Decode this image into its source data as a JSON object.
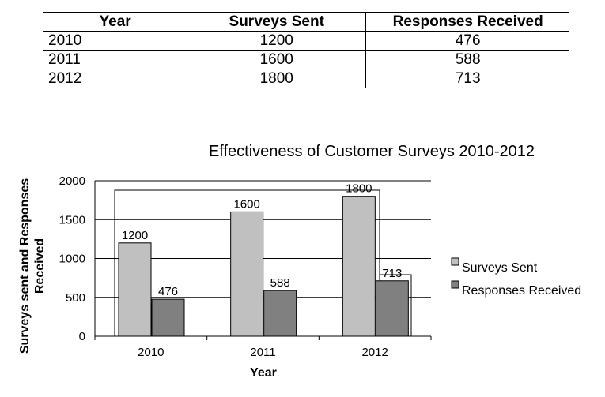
{
  "table": {
    "headers": [
      "Year",
      "Surveys Sent",
      "Responses Received"
    ],
    "rows": [
      [
        "2010",
        "1200",
        "476"
      ],
      [
        "2011",
        "1600",
        "588"
      ],
      [
        "2012",
        "1800",
        "713"
      ]
    ]
  },
  "chart_data": {
    "type": "bar",
    "title": "Effectiveness of Customer Surveys 2010-2012",
    "xlabel": "Year",
    "ylabel": "Surveys sent and Responses Received",
    "categories": [
      "2010",
      "2011",
      "2012"
    ],
    "series": [
      {
        "name": "Surveys Sent",
        "values": [
          1200,
          1600,
          1800
        ],
        "color": "#c0c0c0"
      },
      {
        "name": "Responses Received",
        "values": [
          476,
          588,
          713
        ],
        "color": "#808080"
      }
    ],
    "ylim": [
      0,
      2000
    ],
    "yticks": [
      0,
      500,
      1000,
      1500,
      2000
    ],
    "grid": true,
    "legend": "right"
  }
}
